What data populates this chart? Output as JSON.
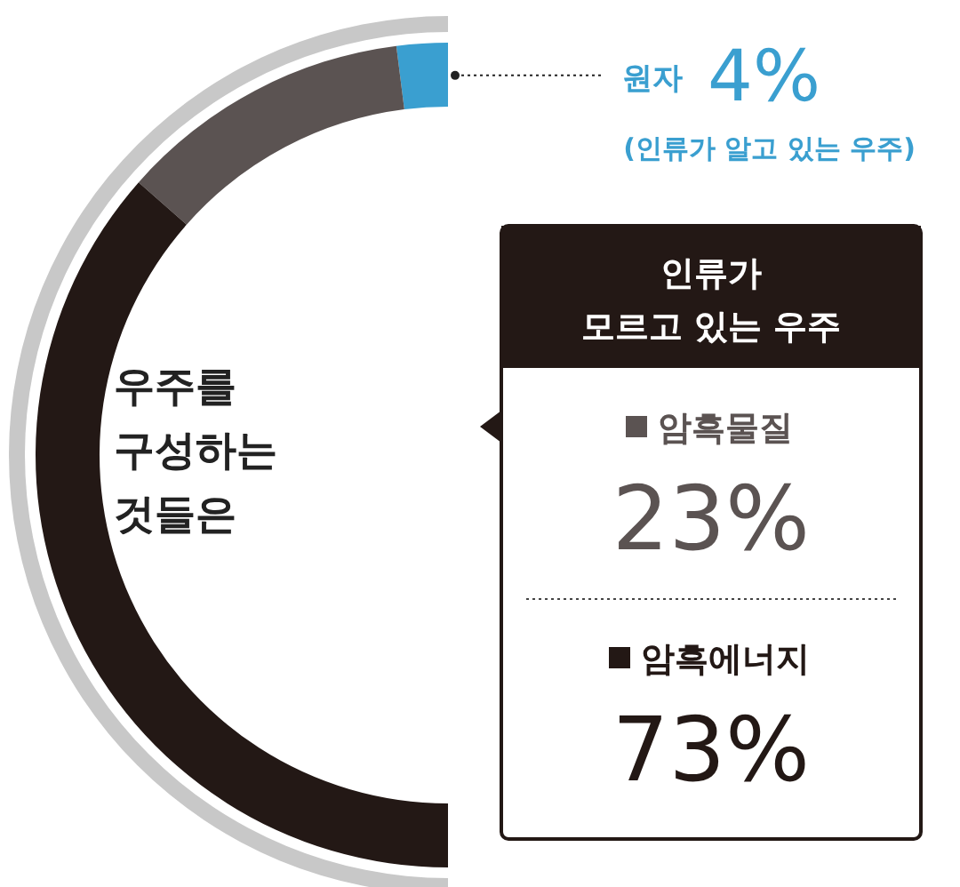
{
  "chart_data": {
    "type": "donut",
    "title": "우주를 구성하는 것들은",
    "categories": [
      "원자",
      "암흑물질",
      "암흑에너지"
    ],
    "values": [
      4,
      23,
      73
    ],
    "colors": [
      "#3a9fd0",
      "#5b5352",
      "#231815"
    ],
    "value_labels": [
      "4%",
      "23%",
      "73%"
    ],
    "annotations": [
      "(인류가 알고 있는 우주)",
      "인류가 모르고 있는 우주"
    ],
    "legend": "right"
  }
}
